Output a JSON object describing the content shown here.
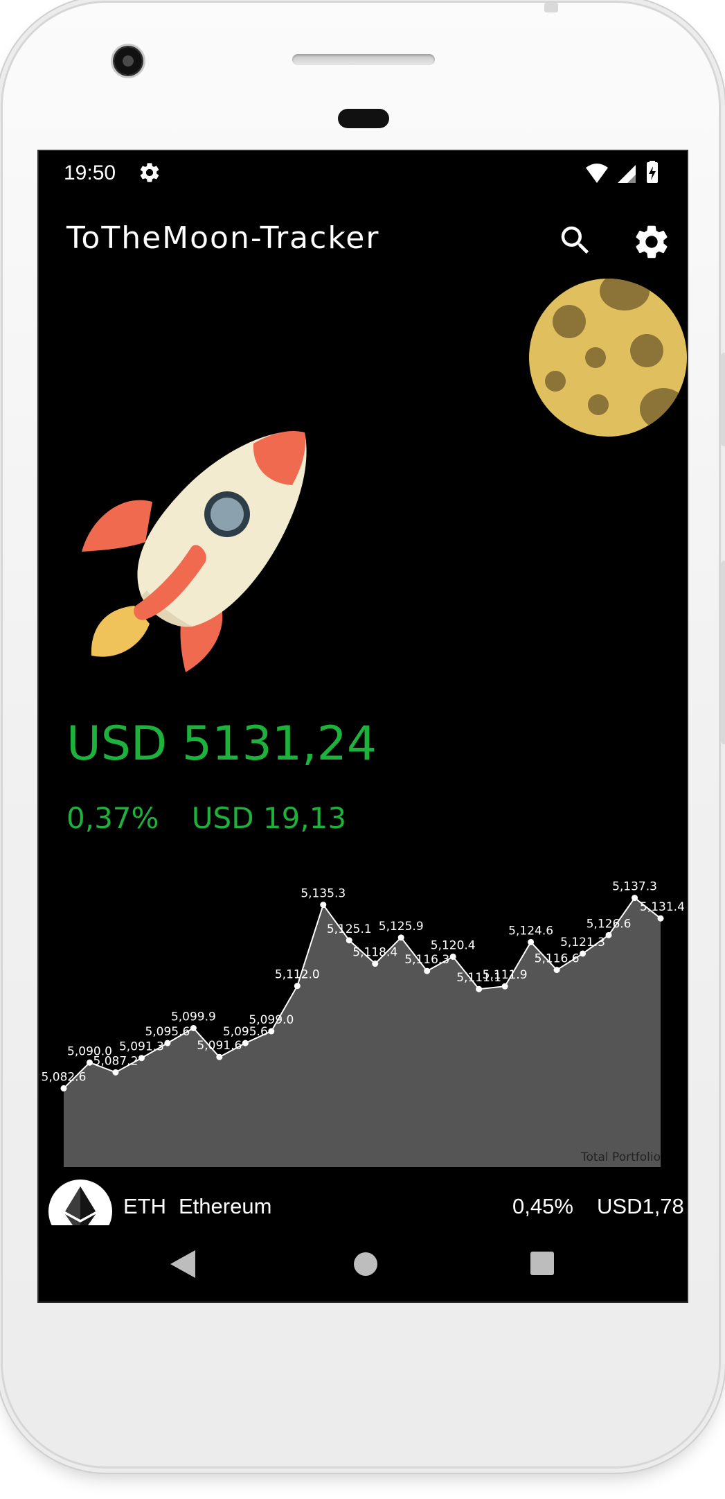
{
  "status_bar": {
    "time": "19:50",
    "icons": [
      "gear-icon",
      "wifi-icon",
      "signal-icon",
      "battery-charging-icon"
    ]
  },
  "toolbar": {
    "title": "ToTheMoon-Tracker",
    "actions": [
      "search-icon",
      "settings-icon"
    ]
  },
  "illustrations": [
    "moon-icon",
    "rocket-icon"
  ],
  "portfolio": {
    "value": "USD 5131,24",
    "change_percent": "0,37%",
    "change_value": "USD 19,13"
  },
  "chart_data": {
    "type": "area",
    "legend": "Total Portfolio",
    "values": [
      5082.6,
      5090.0,
      5087.2,
      5091.3,
      5095.6,
      5099.9,
      5091.6,
      5095.6,
      5099.0,
      5112.0,
      5135.3,
      5125.1,
      5118.4,
      5125.9,
      5116.3,
      5120.4,
      5111.1,
      5111.9,
      5124.6,
      5116.6,
      5121.3,
      5126.6,
      5137.3,
      5131.4
    ],
    "labels": [
      "5,082.6",
      "5,090.0",
      "5,087.2",
      "5,091.3",
      "5,095.6",
      "5,099.9",
      "5,091.6",
      "5,095.6",
      "5,099.0",
      "5,112.0",
      "5,135.3",
      "5,125.1",
      "5,118.4",
      "5,125.9",
      "5,116.3",
      "5,120.4",
      "5,111.1",
      "5,111.9",
      "5,124.6",
      "5,116.6",
      "5,121.3",
      "5,126.6",
      "5,137.3",
      "5,131.4"
    ],
    "ylim": [
      5060,
      5140
    ],
    "colors": {
      "fill": "#555555",
      "line": "#ffffff",
      "text": "#ffffff",
      "background": "#000000"
    }
  },
  "coins": [
    {
      "symbol": "ETH",
      "name": "Ethereum",
      "change_percent": "0,45%",
      "value": "USD1,78",
      "icon": "ethereum-icon"
    }
  ],
  "navigation": [
    "back-icon",
    "home-icon",
    "recent-apps-icon"
  ],
  "colors": {
    "accent_green": "#1db23c",
    "screen_bg": "#000000"
  }
}
